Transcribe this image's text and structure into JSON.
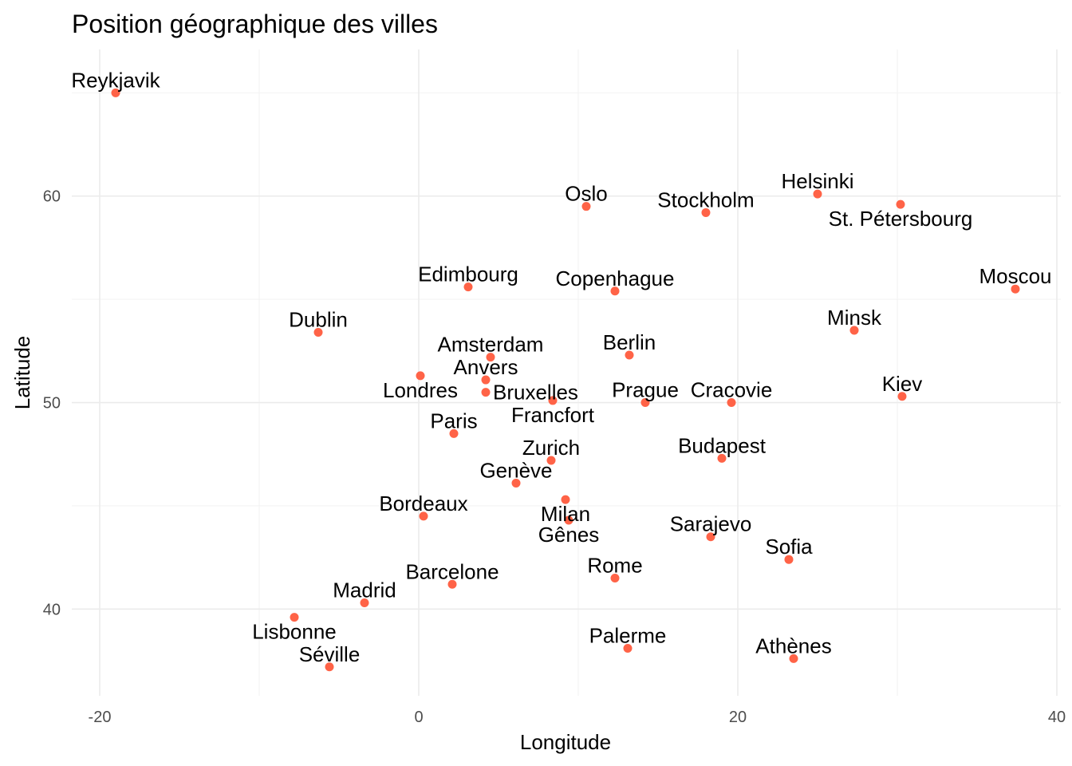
{
  "chart_data": {
    "type": "scatter",
    "title": "Position géographique des villes",
    "xlabel": "Longitude",
    "ylabel": "Latitude",
    "xlim": [
      -21.75,
      40.25
    ],
    "ylim": [
      35.8,
      67.1
    ],
    "x_ticks": [
      -20,
      0,
      20,
      40
    ],
    "y_ticks": [
      40,
      50,
      60
    ],
    "grid": true,
    "point_color": "#FF6347",
    "points": [
      {
        "name": "Reykjavik",
        "lon": -19.0,
        "lat": 65.0
      },
      {
        "name": "Oslo",
        "lon": 10.5,
        "lat": 59.5
      },
      {
        "name": "Stockholm",
        "lon": 18.0,
        "lat": 59.2
      },
      {
        "name": "Helsinki",
        "lon": 25.0,
        "lat": 60.1
      },
      {
        "name": "St. Pétersbourg",
        "lon": 30.2,
        "lat": 59.6
      },
      {
        "name": "Edimbourg",
        "lon": 3.1,
        "lat": 55.6
      },
      {
        "name": "Copenhague",
        "lon": 12.3,
        "lat": 55.4
      },
      {
        "name": "Moscou",
        "lon": 37.4,
        "lat": 55.5
      },
      {
        "name": "Dublin",
        "lon": -6.3,
        "lat": 53.4
      },
      {
        "name": "Minsk",
        "lon": 27.3,
        "lat": 53.5
      },
      {
        "name": "Amsterdam",
        "lon": 4.5,
        "lat": 52.2
      },
      {
        "name": "Berlin",
        "lon": 13.2,
        "lat": 52.3
      },
      {
        "name": "Londres",
        "lon": 0.1,
        "lat": 51.3
      },
      {
        "name": "Anvers",
        "lon": 4.2,
        "lat": 51.1
      },
      {
        "name": "Bruxelles",
        "lon": 4.2,
        "lat": 50.5
      },
      {
        "name": "Francfort",
        "lon": 8.4,
        "lat": 50.1
      },
      {
        "name": "Prague",
        "lon": 14.2,
        "lat": 50.0
      },
      {
        "name": "Cracovie",
        "lon": 19.6,
        "lat": 50.0
      },
      {
        "name": "Kiev",
        "lon": 30.3,
        "lat": 50.3
      },
      {
        "name": "Paris",
        "lon": 2.2,
        "lat": 48.5
      },
      {
        "name": "Zurich",
        "lon": 8.3,
        "lat": 47.2
      },
      {
        "name": "Budapest",
        "lon": 19.0,
        "lat": 47.3
      },
      {
        "name": "Genève",
        "lon": 6.1,
        "lat": 46.1
      },
      {
        "name": "Milan",
        "lon": 9.2,
        "lat": 45.3
      },
      {
        "name": "Gênes",
        "lon": 9.4,
        "lat": 44.3
      },
      {
        "name": "Bordeaux",
        "lon": 0.3,
        "lat": 44.5
      },
      {
        "name": "Sarajevo",
        "lon": 18.3,
        "lat": 43.5
      },
      {
        "name": "Sofia",
        "lon": 23.2,
        "lat": 42.4
      },
      {
        "name": "Rome",
        "lon": 12.3,
        "lat": 41.5
      },
      {
        "name": "Barcelone",
        "lon": 2.1,
        "lat": 41.2
      },
      {
        "name": "Madrid",
        "lon": -3.4,
        "lat": 40.3
      },
      {
        "name": "Lisbonne",
        "lon": -7.8,
        "lat": 39.6
      },
      {
        "name": "Palerme",
        "lon": 13.1,
        "lat": 38.1
      },
      {
        "name": "Athènes",
        "lon": 23.5,
        "lat": 37.6
      },
      {
        "name": "Séville",
        "lon": -5.6,
        "lat": 37.2
      }
    ]
  }
}
